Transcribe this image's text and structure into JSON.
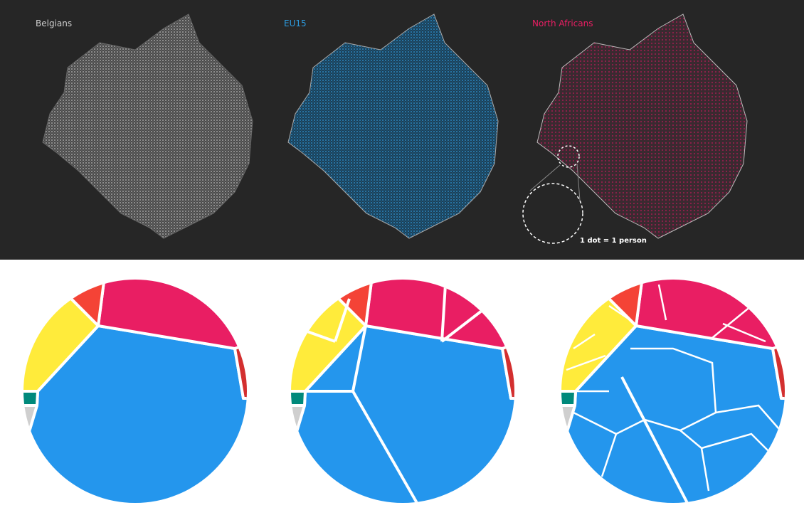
{
  "maps": [
    {
      "label": "Belgians"
    },
    {
      "label": "EU15"
    },
    {
      "label": "North Africans"
    }
  ],
  "legend": "1 dot = 1 person"
}
